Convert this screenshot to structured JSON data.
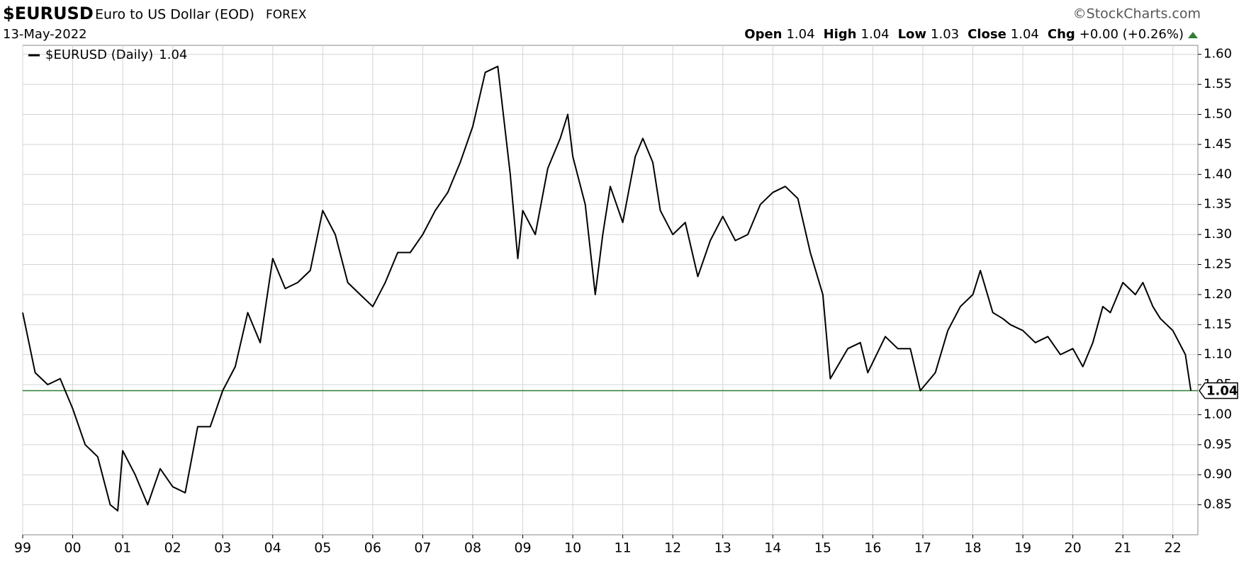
{
  "chart_data": {
    "type": "line",
    "title": "$EURUSD",
    "subtitle": "Euro to US Dollar (EOD)",
    "exchange": "FOREX",
    "source": "©StockCharts.com",
    "date": "13-May-2022",
    "quote": [
      {
        "label": "Open",
        "value": 1.04
      },
      {
        "label": "High",
        "value": 1.04
      },
      {
        "label": "Low",
        "value": 1.03
      },
      {
        "label": "Close",
        "value": 1.04
      },
      {
        "label": "Chg",
        "value": "+0.00 (+0.26%)"
      }
    ],
    "x": [
      1999.0,
      1999.25,
      1999.5,
      1999.75,
      2000.0,
      2000.25,
      2000.5,
      2000.75,
      2000.9,
      2001.0,
      2001.25,
      2001.5,
      2001.75,
      2002.0,
      2002.25,
      2002.5,
      2002.75,
      2003.0,
      2003.25,
      2003.5,
      2003.75,
      2004.0,
      2004.25,
      2004.5,
      2004.75,
      2005.0,
      2005.25,
      2005.5,
      2005.75,
      2006.0,
      2006.25,
      2006.5,
      2006.75,
      2007.0,
      2007.25,
      2007.5,
      2007.75,
      2008.0,
      2008.25,
      2008.5,
      2008.75,
      2008.9,
      2009.0,
      2009.25,
      2009.5,
      2009.75,
      2009.9,
      2010.0,
      2010.25,
      2010.45,
      2010.6,
      2010.75,
      2011.0,
      2011.25,
      2011.4,
      2011.6,
      2011.75,
      2012.0,
      2012.25,
      2012.5,
      2012.75,
      2013.0,
      2013.25,
      2013.5,
      2013.75,
      2014.0,
      2014.25,
      2014.5,
      2014.75,
      2015.0,
      2015.15,
      2015.5,
      2015.75,
      2015.9,
      2016.25,
      2016.5,
      2016.75,
      2016.95,
      2017.25,
      2017.5,
      2017.75,
      2018.0,
      2018.15,
      2018.4,
      2018.6,
      2018.75,
      2019.0,
      2019.25,
      2019.5,
      2019.75,
      2020.0,
      2020.2,
      2020.4,
      2020.6,
      2020.75,
      2021.0,
      2021.25,
      2021.4,
      2021.6,
      2021.75,
      2022.0,
      2022.25,
      2022.36
    ],
    "series": [
      {
        "name": "$EURUSD (Daily)",
        "color": "#000000",
        "values": [
          1.17,
          1.07,
          1.05,
          1.06,
          1.01,
          0.95,
          0.93,
          0.85,
          0.84,
          0.94,
          0.9,
          0.85,
          0.91,
          0.88,
          0.87,
          0.98,
          0.98,
          1.04,
          1.08,
          1.17,
          1.12,
          1.26,
          1.21,
          1.22,
          1.24,
          1.34,
          1.3,
          1.22,
          1.2,
          1.18,
          1.22,
          1.27,
          1.27,
          1.3,
          1.34,
          1.37,
          1.42,
          1.48,
          1.57,
          1.58,
          1.4,
          1.26,
          1.34,
          1.3,
          1.41,
          1.46,
          1.5,
          1.43,
          1.35,
          1.2,
          1.3,
          1.38,
          1.32,
          1.43,
          1.46,
          1.42,
          1.34,
          1.3,
          1.32,
          1.23,
          1.29,
          1.33,
          1.29,
          1.3,
          1.35,
          1.37,
          1.38,
          1.36,
          1.27,
          1.2,
          1.06,
          1.11,
          1.12,
          1.07,
          1.13,
          1.11,
          1.11,
          1.04,
          1.07,
          1.14,
          1.18,
          1.2,
          1.24,
          1.17,
          1.16,
          1.15,
          1.14,
          1.12,
          1.13,
          1.1,
          1.11,
          1.08,
          1.12,
          1.18,
          1.17,
          1.22,
          1.2,
          1.22,
          1.18,
          1.16,
          1.14,
          1.1,
          1.04
        ]
      }
    ],
    "price_line": {
      "value": 1.04,
      "color": "#2e7d32"
    },
    "xlim": [
      1999,
      2022.5
    ],
    "xticks": [
      {
        "value": 1999,
        "label": "99"
      },
      {
        "value": 2000,
        "label": "00"
      },
      {
        "value": 2001,
        "label": "01"
      },
      {
        "value": 2002,
        "label": "02"
      },
      {
        "value": 2003,
        "label": "03"
      },
      {
        "value": 2004,
        "label": "04"
      },
      {
        "value": 2005,
        "label": "05"
      },
      {
        "value": 2006,
        "label": "06"
      },
      {
        "value": 2007,
        "label": "07"
      },
      {
        "value": 2008,
        "label": "08"
      },
      {
        "value": 2009,
        "label": "09"
      },
      {
        "value": 2010,
        "label": "10"
      },
      {
        "value": 2011,
        "label": "11"
      },
      {
        "value": 2012,
        "label": "12"
      },
      {
        "value": 2013,
        "label": "13"
      },
      {
        "value": 2014,
        "label": "14"
      },
      {
        "value": 2015,
        "label": "15"
      },
      {
        "value": 2016,
        "label": "16"
      },
      {
        "value": 2017,
        "label": "17"
      },
      {
        "value": 2018,
        "label": "18"
      },
      {
        "value": 2019,
        "label": "19"
      },
      {
        "value": 2020,
        "label": "20"
      },
      {
        "value": 2021,
        "label": "21"
      },
      {
        "value": 2022,
        "label": "22"
      }
    ],
    "ylim": [
      0.8,
      1.615
    ],
    "yticks": [
      0.85,
      {
        "value": 0.9,
        "label": "0.90"
      },
      0.95,
      {
        "value": 1,
        "label": "1.00"
      },
      1.05,
      {
        "value": 1.1,
        "label": "1.10"
      },
      1.15,
      {
        "value": 1.2,
        "label": "1.20"
      },
      1.25,
      {
        "value": 1.3,
        "label": "1.30"
      },
      1.35,
      {
        "value": 1.4,
        "label": "1.40"
      },
      1.45,
      {
        "value": 1.5,
        "label": "1.50"
      },
      1.55,
      {
        "value": 1.6,
        "label": "1.60"
      }
    ],
    "grid": true
  }
}
